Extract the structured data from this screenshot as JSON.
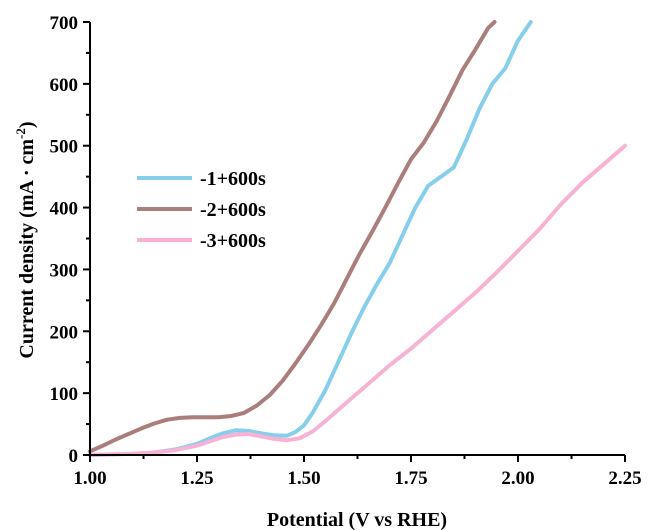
{
  "chart_data": {
    "type": "line",
    "xlabel": "Potential (V vs RHE)",
    "ylabel_parts": [
      "Current density (mA · cm",
      "-2",
      ")"
    ],
    "xlim": [
      1.0,
      2.25
    ],
    "ylim": [
      0,
      700
    ],
    "x_ticks": [
      1.0,
      1.25,
      1.5,
      1.75,
      2.0,
      2.25
    ],
    "x_tick_labels": [
      "1.00",
      "1.25",
      "1.50",
      "1.75",
      "2.00",
      "2.25"
    ],
    "y_ticks": [
      0,
      100,
      200,
      300,
      400,
      500,
      600,
      700
    ],
    "y_tick_labels": [
      "0",
      "100",
      "200",
      "300",
      "400",
      "500",
      "600",
      "700"
    ],
    "grid": false,
    "legend_position": "middle-left",
    "series": [
      {
        "name": "-1+600s",
        "color": "#87CEEB",
        "x": [
          1.0,
          1.05,
          1.1,
          1.15,
          1.2,
          1.25,
          1.28,
          1.31,
          1.34,
          1.37,
          1.4,
          1.43,
          1.46,
          1.48,
          1.5,
          1.52,
          1.55,
          1.58,
          1.61,
          1.64,
          1.67,
          1.7,
          1.73,
          1.76,
          1.79,
          1.82,
          1.85,
          1.88,
          1.91,
          1.94,
          1.97,
          2.0,
          2.03
        ],
        "y": [
          0,
          1,
          2,
          4,
          9,
          18,
          27,
          35,
          40,
          39,
          35,
          32,
          31,
          37,
          48,
          68,
          105,
          150,
          196,
          238,
          276,
          310,
          355,
          400,
          435,
          450,
          465,
          510,
          560,
          600,
          625,
          670,
          700
        ]
      },
      {
        "name": "-2+600s",
        "color": "#A97E7B",
        "x": [
          1.0,
          1.03,
          1.06,
          1.09,
          1.12,
          1.15,
          1.18,
          1.21,
          1.24,
          1.27,
          1.3,
          1.33,
          1.36,
          1.39,
          1.42,
          1.45,
          1.48,
          1.51,
          1.54,
          1.57,
          1.6,
          1.63,
          1.66,
          1.69,
          1.72,
          1.75,
          1.78,
          1.81,
          1.84,
          1.87,
          1.9,
          1.93,
          1.945
        ],
        "y": [
          6,
          15,
          25,
          34,
          43,
          51,
          57,
          60,
          61,
          61,
          61,
          63,
          68,
          80,
          97,
          120,
          148,
          178,
          210,
          245,
          285,
          325,
          362,
          400,
          440,
          478,
          505,
          540,
          580,
          622,
          655,
          690,
          700
        ]
      },
      {
        "name": "-3+600s",
        "color": "#F7B2D5",
        "x": [
          1.0,
          1.05,
          1.1,
          1.15,
          1.2,
          1.25,
          1.28,
          1.31,
          1.34,
          1.37,
          1.4,
          1.43,
          1.46,
          1.49,
          1.52,
          1.55,
          1.6,
          1.65,
          1.7,
          1.75,
          1.8,
          1.85,
          1.9,
          1.95,
          2.0,
          2.05,
          2.1,
          2.15,
          2.2,
          2.25
        ],
        "y": [
          0,
          1,
          2,
          4,
          8,
          15,
          22,
          29,
          33,
          34,
          30,
          26,
          24,
          27,
          38,
          55,
          85,
          115,
          145,
          172,
          202,
          232,
          262,
          295,
          330,
          365,
          405,
          440,
          470,
          500
        ]
      }
    ]
  }
}
